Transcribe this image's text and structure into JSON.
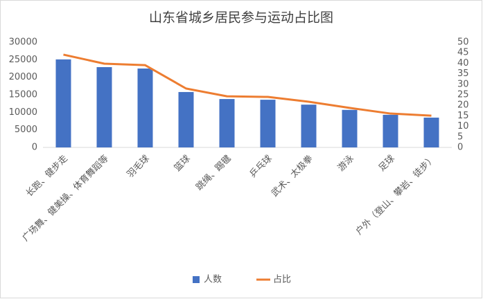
{
  "chart_data": {
    "type": "bar",
    "title": "山东省城乡居民参与运动占比图",
    "categories": [
      "长跑、健步走",
      "广场舞、健美操、体育舞蹈等",
      "羽毛球",
      "篮球",
      "跳绳、踢毽",
      "乒乓球",
      "武术、太极拳",
      "游泳",
      "足球",
      "户外（登山、攀岩、徒步）"
    ],
    "series": [
      {
        "name": "人数",
        "type": "bar",
        "color": "#4472c4",
        "values": [
          25100,
          22900,
          22500,
          15800,
          13800,
          13600,
          12200,
          10700,
          9300,
          8500
        ]
      },
      {
        "name": "占比",
        "type": "line",
        "axis": "y2",
        "color": "#ed7d31",
        "values": [
          44.1,
          39.8,
          39.1,
          28,
          24.3,
          24,
          21.7,
          18.8,
          16.1,
          15.1
        ]
      }
    ],
    "ylim": [
      0,
      30000
    ],
    "yticks": [
      0,
      5000,
      10000,
      15000,
      20000,
      25000,
      30000
    ],
    "y2lim": [
      0,
      50
    ],
    "y2ticks": [
      0,
      5,
      10,
      15,
      20,
      25,
      30,
      35,
      40,
      45,
      50
    ],
    "grid": false,
    "legend": "bottom"
  }
}
